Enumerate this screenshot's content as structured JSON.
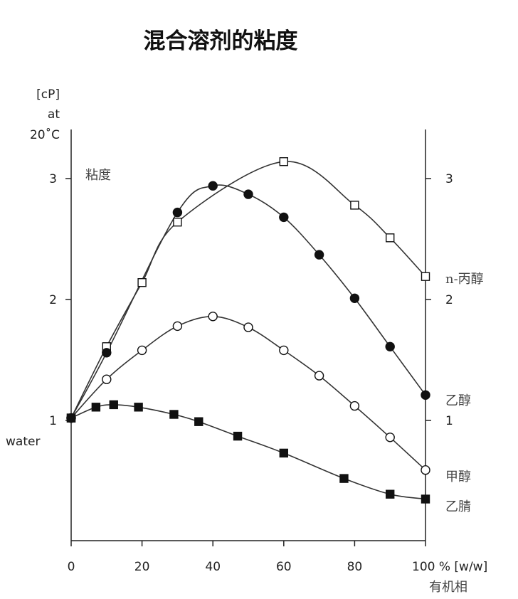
{
  "chart_data": {
    "type": "line",
    "title": "混合溶剂的粘度",
    "y_unit_lines": [
      "[cP]",
      "at",
      "20˚C"
    ],
    "ylabel": "粘度",
    "water_label": "water",
    "xlabel_unit": "100 % [w/w]",
    "xlabel_sub": "有机相",
    "x_ticks": [
      "0",
      "20",
      "40",
      "60",
      "80"
    ],
    "y_ticks_left": [
      "1",
      "2",
      "3"
    ],
    "y_ticks_right": [
      "1",
      "2",
      "3"
    ],
    "xlim": [
      0,
      100
    ],
    "ylim": [
      0,
      3.5
    ],
    "grid": false,
    "series": [
      {
        "name": "n-丙醇",
        "marker": "open-square",
        "x": [
          0,
          10,
          20,
          30,
          60,
          80,
          90,
          100
        ],
        "y": [
          1.02,
          1.61,
          2.14,
          2.64,
          3.14,
          2.78,
          2.51,
          2.19
        ]
      },
      {
        "name": "乙醇",
        "marker": "filled-circle",
        "x": [
          0,
          10,
          30,
          40,
          50,
          60,
          70,
          80,
          90,
          100
        ],
        "y": [
          1.02,
          1.56,
          2.72,
          2.94,
          2.87,
          2.68,
          2.37,
          2.01,
          1.61,
          1.21
        ]
      },
      {
        "name": "甲醇",
        "marker": "open-circle",
        "x": [
          0,
          10,
          20,
          30,
          40,
          50,
          60,
          70,
          80,
          90,
          100
        ],
        "y": [
          1.02,
          1.34,
          1.58,
          1.78,
          1.86,
          1.77,
          1.58,
          1.37,
          1.12,
          0.86,
          0.59
        ]
      },
      {
        "name": "乙腈",
        "marker": "filled-square",
        "x": [
          0,
          7,
          12,
          19,
          29,
          36,
          47,
          60,
          77,
          90,
          100
        ],
        "y": [
          1.02,
          1.11,
          1.13,
          1.11,
          1.05,
          0.99,
          0.87,
          0.73,
          0.52,
          0.39,
          0.35
        ]
      }
    ]
  }
}
